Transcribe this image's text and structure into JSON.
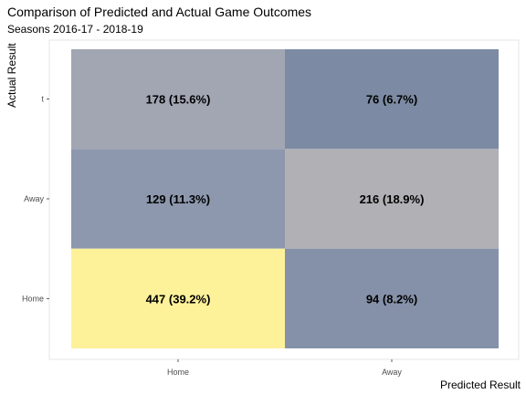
{
  "chart_data": {
    "type": "heatmap",
    "title": "Comparison of Predicted and Actual Game Outcomes",
    "subtitle": "Seasons 2016-17 - 2018-19",
    "xlabel": "Predicted Result",
    "ylabel": "Actual Result",
    "x_categories": [
      "Home",
      "Away"
    ],
    "y_categories": [
      "Home",
      "Away",
      "t"
    ],
    "cells": [
      {
        "x": "Home",
        "y": "t",
        "count": 178,
        "label": "178 (15.6%)",
        "color": "#a2a6b3"
      },
      {
        "x": "Away",
        "y": "t",
        "count": 76,
        "label": "76 (6.7%)",
        "color": "#7c8ba3"
      },
      {
        "x": "Home",
        "y": "Away",
        "count": 129,
        "label": "129 (11.3%)",
        "color": "#8d98ae"
      },
      {
        "x": "Away",
        "y": "Away",
        "count": 216,
        "label": "216 (18.9%)",
        "color": "#b1b1b5"
      },
      {
        "x": "Home",
        "y": "Home",
        "count": 447,
        "label": "447 (39.2%)",
        "color": "#fdf19a"
      },
      {
        "x": "Away",
        "y": "Home",
        "count": 94,
        "label": "94 (8.2%)",
        "color": "#8591a9"
      }
    ],
    "grid": false,
    "legend": "none"
  }
}
